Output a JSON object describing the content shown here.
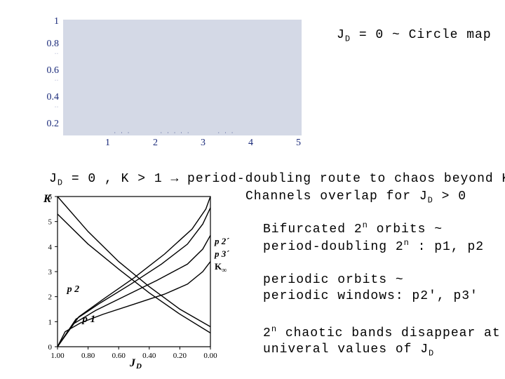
{
  "top_chart": {
    "type": "scatter",
    "background_color": "#d4d9e6",
    "axis_text_color": "#1a2a7a",
    "axis_font": "Georgia, serif",
    "y_ticks": [
      "1",
      "0.8",
      "0.6",
      "0.4",
      "0.2"
    ],
    "x_ticks": [
      "1",
      "2",
      "3",
      "4",
      "5"
    ],
    "xlim": [
      0,
      5.5
    ],
    "ylim": [
      0,
      1.05
    ],
    "tick_fontsize": 14
  },
  "caption_top_right": {
    "prefix": "J",
    "sub": "D",
    "text": " = 0 ~ Circle map"
  },
  "mid_line_1": {
    "prefix": "J",
    "sub1": "D",
    "mid": " = 0 , K > 1 → period-doubling route to chaos beyond K",
    "sub2": "∞"
  },
  "mid_line_2": {
    "prefix": "Channels overlap for J",
    "sub": "D",
    "tail": " > 0"
  },
  "bottom_chart": {
    "type": "line",
    "background_color": "#ffffff",
    "frame_color": "#000000",
    "line_color": "#000000",
    "x_label": "J",
    "x_label_sub": "D",
    "y_label": "K",
    "x_ticks": [
      "1.00",
      "0.80",
      "0.60",
      "0.40",
      "0.20",
      "0.00"
    ],
    "y_ticks": [
      "0",
      "1",
      "2",
      "3",
      "4",
      "5",
      "6"
    ],
    "region_labels": [
      "p 2´",
      "p 3´",
      "K∞",
      "p 2",
      "p 1"
    ],
    "region_label_positions": {
      "p2prime": [
        0.92,
        4.2
      ],
      "p3prime": [
        0.92,
        3.7
      ],
      "Kinf": [
        0.92,
        3.2
      ],
      "p2": [
        0.8,
        2.3
      ],
      "p1": [
        0.7,
        1.1
      ]
    },
    "curves": {
      "lower_boundary": [
        [
          1.0,
          0.0
        ],
        [
          0.95,
          0.6
        ],
        [
          0.85,
          0.95
        ],
        [
          0.7,
          1.3
        ],
        [
          0.5,
          1.7
        ],
        [
          0.3,
          2.1
        ],
        [
          0.15,
          2.5
        ],
        [
          0.05,
          3.0
        ],
        [
          0.0,
          3.4
        ]
      ],
      "p1_top": [
        [
          1.0,
          0.0
        ],
        [
          0.9,
          0.9
        ],
        [
          0.75,
          1.45
        ],
        [
          0.55,
          2.05
        ],
        [
          0.35,
          2.65
        ],
        [
          0.15,
          3.3
        ],
        [
          0.05,
          3.9
        ],
        [
          0.0,
          4.45
        ]
      ],
      "p2_top": [
        [
          1.0,
          0.0
        ],
        [
          0.88,
          1.1
        ],
        [
          0.72,
          1.75
        ],
        [
          0.52,
          2.5
        ],
        [
          0.32,
          3.3
        ],
        [
          0.15,
          4.1
        ],
        [
          0.05,
          4.9
        ],
        [
          0.0,
          5.55
        ]
      ],
      "kinf": [
        [
          1.0,
          0.0
        ],
        [
          0.86,
          1.2
        ],
        [
          0.7,
          1.9
        ],
        [
          0.5,
          2.75
        ],
        [
          0.3,
          3.7
        ],
        [
          0.12,
          4.7
        ],
        [
          0.03,
          5.5
        ],
        [
          0.0,
          6.0
        ]
      ],
      "desc_1": [
        [
          1.0,
          6.0
        ],
        [
          0.8,
          4.6
        ],
        [
          0.6,
          3.4
        ],
        [
          0.4,
          2.4
        ],
        [
          0.2,
          1.5
        ],
        [
          0.0,
          0.8
        ]
      ],
      "desc_2": [
        [
          1.0,
          5.3
        ],
        [
          0.8,
          4.1
        ],
        [
          0.6,
          3.1
        ],
        [
          0.4,
          2.15
        ],
        [
          0.2,
          1.3
        ],
        [
          0.0,
          0.55
        ]
      ]
    },
    "xlim": [
      1.0,
      0.0
    ],
    "ylim": [
      0,
      6
    ],
    "label_fontsize": 16,
    "tick_fontsize": 11,
    "frame_width": 1.2
  },
  "text_block_1": {
    "line1_a": "Bifurcated 2",
    "line1_sup": "n",
    "line1_b": " orbits ~",
    "line2_a": "period-doubling 2",
    "line2_sup": "n",
    "line2_b": " : p1, p2"
  },
  "text_block_2": {
    "line1": "periodic orbits ~",
    "line2": "periodic windows: p2', p3'"
  },
  "text_block_3": {
    "line1_a": "2",
    "line1_sup": "n",
    "line1_b": " chaotic bands disappear at",
    "line2_a": "univeral values of J",
    "line2_sub": "D"
  }
}
